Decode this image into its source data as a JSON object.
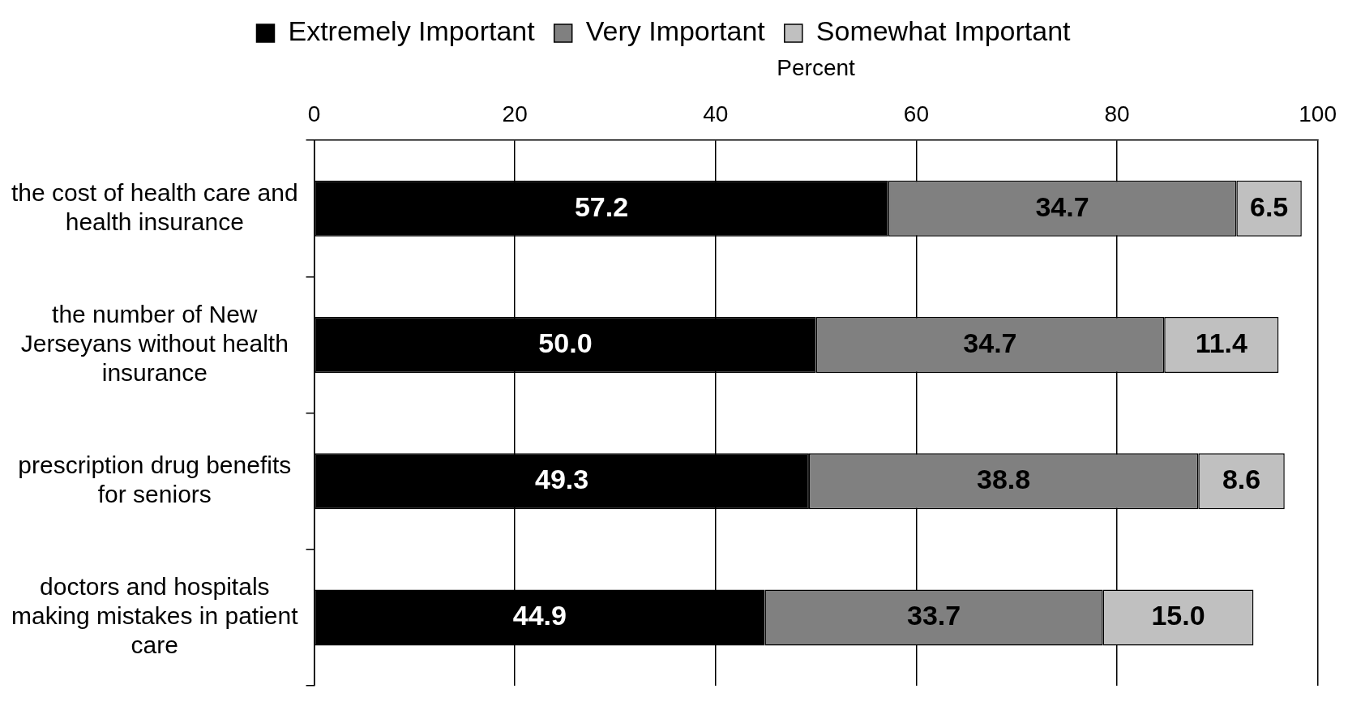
{
  "chart_data": {
    "type": "bar",
    "orientation": "horizontal",
    "stacked": true,
    "xlabel": "Percent",
    "categories": [
      "the cost of health care and health insurance",
      "the number of New Jerseyans without health insurance",
      "prescription drug benefits for seniors",
      "doctors and hospitals making mistakes in patient care"
    ],
    "series": [
      {
        "name": "Extremely Important",
        "color": "#000000",
        "values": [
          57.2,
          50.0,
          49.3,
          44.9
        ],
        "value_labels": [
          "57.2",
          "50.0",
          "49.3",
          "44.9"
        ]
      },
      {
        "name": "Very Important",
        "color": "#808080",
        "values": [
          34.7,
          34.7,
          38.8,
          33.7
        ],
        "value_labels": [
          "34.7",
          "34.7",
          "38.8",
          "33.7"
        ]
      },
      {
        "name": "Somewhat Important",
        "color": "#c0c0c0",
        "values": [
          6.5,
          11.4,
          8.6,
          15.0
        ],
        "value_labels": [
          "6.5",
          "11.4",
          "8.6",
          "15.0"
        ]
      }
    ],
    "xlim": [
      0,
      100
    ],
    "xticks": [
      0,
      20,
      40,
      60,
      80,
      100
    ],
    "grid": "x",
    "legend": "top"
  }
}
